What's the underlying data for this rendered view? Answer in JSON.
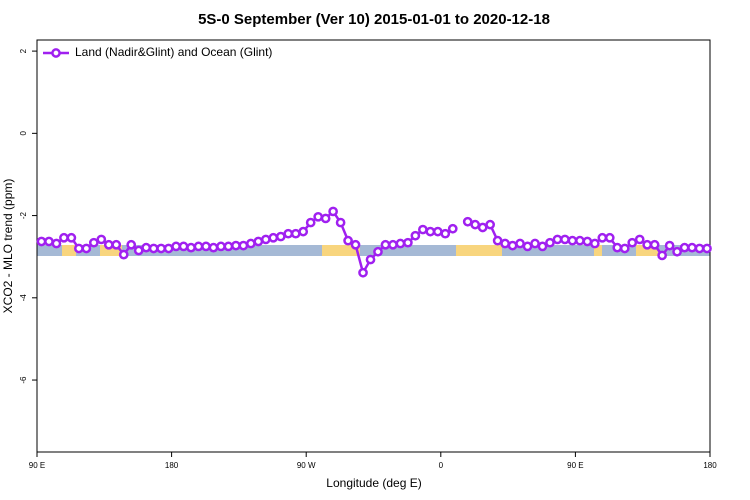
{
  "chart_data": {
    "type": "line",
    "title": "5S-0 September (Ver 10)   2015-01-01 to 2020-12-18",
    "xlabel": "Longitude (deg E)",
    "ylabel": "XCO2 - MLO trend (ppm)",
    "x": [
      93,
      98,
      103,
      108,
      113,
      118,
      123,
      128,
      133,
      138,
      143,
      148,
      153,
      158,
      163,
      168,
      173,
      178,
      183,
      188,
      193,
      198,
      203,
      208,
      213,
      218,
      223,
      228,
      233,
      238,
      243,
      248,
      253,
      258,
      263,
      268,
      273,
      278,
      283,
      288,
      293,
      298,
      303,
      308,
      313,
      318,
      323,
      328,
      333,
      338,
      343,
      348,
      353,
      358,
      363,
      368,
      373,
      378,
      383,
      388,
      393,
      398,
      403,
      408,
      413,
      418,
      423,
      428,
      433,
      438,
      443,
      448,
      453,
      458,
      463,
      468,
      473,
      478,
      483,
      488,
      493,
      498,
      503,
      508,
      513,
      518,
      523,
      528,
      533,
      538
    ],
    "series": [
      {
        "name": "Land (Nadir&Glint) and Ocean (Glint)",
        "color": "#a020f0",
        "values": [
          -2.63,
          -2.63,
          -2.68,
          -2.54,
          -2.54,
          -2.8,
          -2.8,
          -2.66,
          -2.58,
          -2.71,
          -2.71,
          -2.95,
          -2.71,
          -2.85,
          -2.78,
          -2.8,
          -2.8,
          -2.8,
          -2.75,
          -2.75,
          -2.78,
          -2.75,
          -2.75,
          -2.78,
          -2.75,
          -2.75,
          -2.73,
          -2.73,
          -2.68,
          -2.63,
          -2.58,
          -2.54,
          -2.51,
          -2.44,
          -2.44,
          -2.39,
          -2.17,
          -2.03,
          -2.07,
          -1.9,
          -2.17,
          -2.61,
          -2.71,
          -3.39,
          -3.07,
          -2.88,
          -2.71,
          -2.71,
          -2.68,
          -2.66,
          -2.49,
          -2.34,
          -2.39,
          -2.39,
          -2.44,
          -2.32,
          null,
          -2.15,
          -2.22,
          -2.29,
          -2.22,
          -2.61,
          -2.68,
          -2.73,
          -2.68,
          -2.75,
          -2.68,
          -2.75,
          -2.66,
          -2.58,
          -2.58,
          -2.61,
          -2.61,
          -2.63,
          -2.68,
          -2.54,
          -2.54,
          -2.78,
          -2.8,
          -2.66,
          -2.58,
          -2.71,
          -2.71,
          -2.97,
          -2.73,
          -2.88,
          -2.78,
          -2.78,
          -2.8,
          -2.8
        ]
      }
    ],
    "xlim": [
      90,
      540
    ],
    "xticks": [
      {
        "value": 90,
        "label": "90 E"
      },
      {
        "value": 180,
        "label": "180"
      },
      {
        "value": 270,
        "label": "90 W"
      },
      {
        "value": 360,
        "label": "0"
      },
      {
        "value": 450,
        "label": "90 E"
      },
      {
        "value": 540,
        "label": "180"
      }
    ],
    "ylim": [
      -7.75,
      2.27
    ],
    "yticks": [
      2,
      0,
      -2,
      -4,
      -6
    ],
    "legend": "topleft"
  }
}
